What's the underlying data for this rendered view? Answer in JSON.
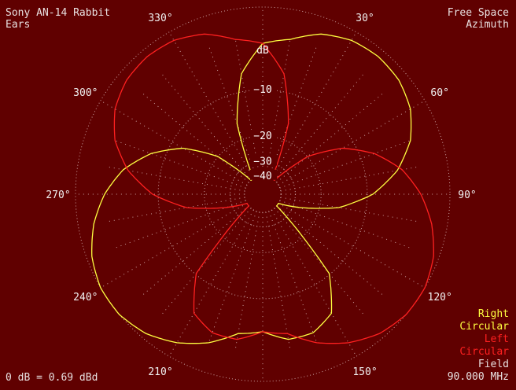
{
  "header": {
    "title_line1": "Sony AN-14 Rabbit",
    "title_line2": "Ears",
    "mode_line1": "Free Space",
    "mode_line2": "Azimuth"
  },
  "footer": {
    "reference": "0 dB = 0.69 dBd",
    "field_label": "Field",
    "frequency": "90.000 MHz"
  },
  "legend": [
    {
      "line1": "Right",
      "line2": "Circular",
      "color": "#ffff40"
    },
    {
      "line1": "Left",
      "line2": "Circular",
      "color": "#ff2020"
    }
  ],
  "chart_data": {
    "type": "polar",
    "title": "Sony AN-14 Rabbit Ears",
    "subtitle": "Free Space Azimuth",
    "radial_unit": "dB",
    "radial_ticks": [
      {
        "value": -10,
        "label": "−10"
      },
      {
        "value": -20,
        "label": "−20"
      },
      {
        "value": -30,
        "label": "−30"
      },
      {
        "value": -40,
        "label": "−40"
      }
    ],
    "angle_labels": [
      "30°",
      "60°",
      "90°",
      "120°",
      "150°",
      "210°",
      "240°",
      "270°",
      "300°",
      "330°"
    ],
    "angle_values": [
      30,
      60,
      90,
      120,
      150,
      210,
      240,
      270,
      300,
      330
    ],
    "grid": true,
    "series": [
      {
        "name": "Right Circular",
        "color": "#ffff40",
        "angles_deg": [
          0,
          10,
          20,
          30,
          40,
          50,
          60,
          70,
          80,
          90,
          100,
          110,
          120,
          130,
          140,
          150,
          160,
          170,
          180,
          190,
          200,
          210,
          220,
          230,
          240,
          250,
          260,
          270,
          280,
          290,
          300,
          310,
          320,
          330,
          340,
          350
        ],
        "gain_db": [
          -3.7,
          -3.0,
          -1.6,
          -0.9,
          -0.7,
          -0.9,
          -1.6,
          -3.0,
          -5.4,
          -9.1,
          -15.2,
          -27.1,
          -40.0,
          -40.0,
          -10.2,
          -5.3,
          -4.1,
          -4.1,
          -5.3,
          -4.8,
          -2.9,
          -1.5,
          -0.5,
          0.0,
          0.0,
          -0.5,
          -1.5,
          -2.9,
          -4.8,
          -7.8,
          -12.2,
          -19.9,
          -40.0,
          -40.0,
          -15.7,
          -7.3
        ]
      },
      {
        "name": "Left Circular",
        "color": "#ff2020",
        "angles_deg": [
          0,
          10,
          20,
          30,
          40,
          50,
          60,
          70,
          80,
          90,
          100,
          110,
          120,
          130,
          140,
          150,
          160,
          170,
          180,
          190,
          200,
          210,
          220,
          230,
          240,
          250,
          260,
          270,
          280,
          290,
          300,
          310,
          320,
          330,
          340,
          350
        ],
        "gain_db": [
          -3.7,
          -7.3,
          -15.7,
          -40.0,
          -40.0,
          -19.9,
          -12.2,
          -7.8,
          -4.8,
          -2.9,
          -1.5,
          -0.5,
          0.0,
          0.0,
          -0.5,
          -1.5,
          -2.9,
          -4.8,
          -5.3,
          -4.1,
          -4.1,
          -5.3,
          -10.2,
          -40.0,
          -40.0,
          -27.1,
          -15.2,
          -9.1,
          -5.4,
          -3.0,
          -1.6,
          -0.9,
          -0.7,
          -0.9,
          -1.6,
          -3.0
        ]
      }
    ]
  }
}
